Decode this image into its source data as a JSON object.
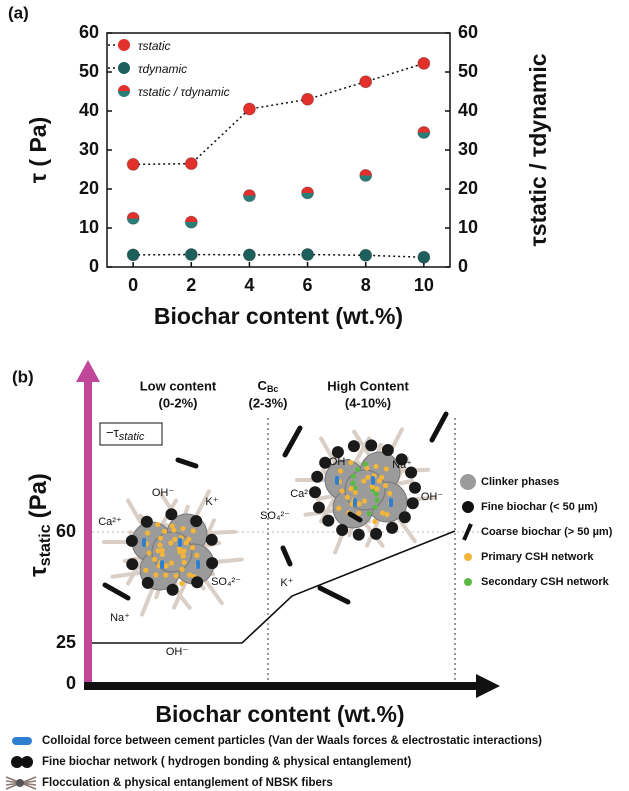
{
  "chart_data": {
    "type": "scatter",
    "panel": "(a)",
    "x_label": "Biochar content (wt.%)",
    "y_label": "τ ( Pa)",
    "y2_label": "τstatic / τdynamic",
    "x": [
      0,
      2,
      4,
      6,
      8,
      10
    ],
    "xlim": [
      -0.9,
      10.9
    ],
    "xticks": [
      0,
      2,
      4,
      6,
      8,
      10
    ],
    "ylim": [
      0,
      60
    ],
    "yticks": [
      0,
      10,
      20,
      30,
      40,
      50,
      60
    ],
    "y2lim": [
      0,
      60
    ],
    "y2ticks": [
      0,
      10,
      20,
      30,
      40,
      50,
      60
    ],
    "legend": "upper left",
    "series": [
      {
        "name": "τstatic",
        "color": "#e3302b",
        "linestyle": "dotted",
        "values": [
          26.3,
          26.5,
          40.5,
          43,
          47.5,
          52.2
        ]
      },
      {
        "name": "τdynamic",
        "color": "#1c5f5b",
        "linestyle": "dotted",
        "values": [
          3.1,
          3.2,
          3.1,
          3.2,
          3.0,
          2.5
        ]
      },
      {
        "name": "τstatic / τdynamic",
        "color": [
          "#e3302b",
          "#2a7e78"
        ],
        "axis": "y2",
        "values": [
          12.5,
          11.5,
          18.3,
          19,
          23.5,
          34.5
        ]
      }
    ]
  },
  "diagram": {
    "panel": "(b)",
    "y_label": {
      "symbol": "τ",
      "subscript": "static",
      "unit": "(Pa)"
    },
    "y_ticks": [
      "60",
      "25",
      "0"
    ],
    "inset": {
      "prefix": "−τ",
      "subscript": "static"
    },
    "x_label": "Biochar content (wt.%)",
    "low": {
      "title": "Low content",
      "range": "(0-2%)",
      "ions": [
        "OH⁻",
        "K⁺",
        "Ca²⁺",
        "SO₄²⁻",
        "Na⁺",
        "OH⁻"
      ]
    },
    "transition": {
      "main": "C",
      "subscript": "Bc",
      "range": "(2-3%)"
    },
    "high": {
      "title": "High Content",
      "range": "(4-10%)",
      "ions": [
        "OH⁻",
        "Na⁺",
        "Ca²⁺",
        "SO₄²⁻",
        "OH⁻",
        "K⁺"
      ]
    },
    "legend": [
      "Clinker phases",
      "Fine biochar (< 50 µm)",
      "Coarse biochar (> 50 µm)",
      "Primary CSH network",
      "Secondary CSH network"
    ],
    "notes": [
      "Colloidal force between cement particles (Van der Waals forces & electrostatic interactions)",
      "Fine biochar network ( hydrogen bonding & physical entanglement)",
      "Flocculation & physical entanglement of NBSK fibers"
    ]
  }
}
